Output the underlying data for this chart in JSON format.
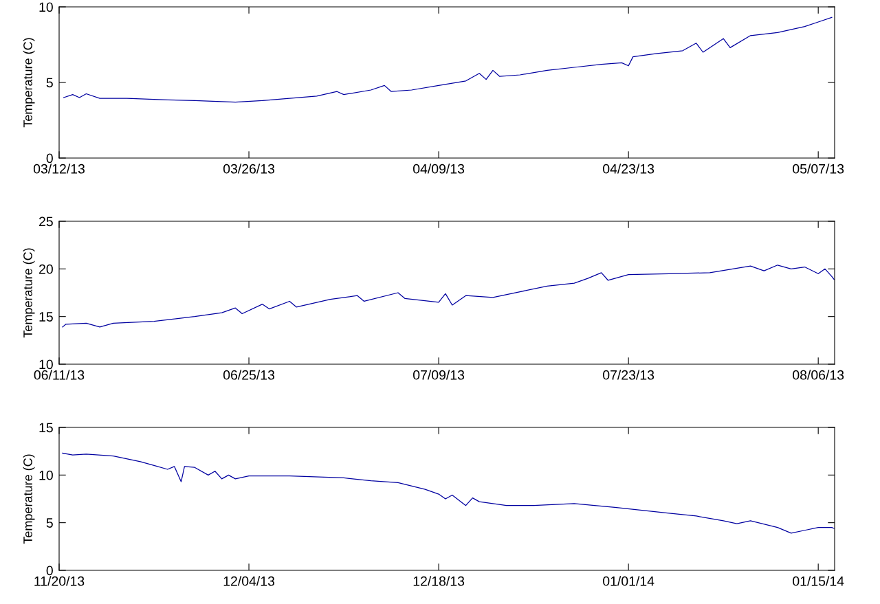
{
  "chart_data": [
    {
      "type": "line",
      "ylabel": "Temperature (C)",
      "color": "#0000a0",
      "grid": false,
      "legend": false,
      "xlim": [
        "2013-03-12",
        "2013-05-08T05:00"
      ],
      "ylim": [
        0,
        10
      ],
      "yticks": [
        0,
        5,
        10
      ],
      "xticks": [
        {
          "value": "2013-03-12",
          "label": "03/12/13"
        },
        {
          "value": "2013-03-26",
          "label": "03/26/13"
        },
        {
          "value": "2013-04-09",
          "label": "04/09/13"
        },
        {
          "value": "2013-04-23",
          "label": "04/23/13"
        },
        {
          "value": "2013-05-07",
          "label": "05/07/13"
        }
      ],
      "x": [
        "2013-03-12T08:00",
        "2013-03-13",
        "2013-03-13T12:00",
        "2013-03-14",
        "2013-03-15",
        "2013-03-17",
        "2013-03-20",
        "2013-03-22",
        "2013-03-25",
        "2013-03-27",
        "2013-03-29",
        "2013-03-31",
        "2013-04-01T12:00",
        "2013-04-02",
        "2013-04-04",
        "2013-04-05",
        "2013-04-05T12:00",
        "2013-04-07",
        "2013-04-09",
        "2013-04-11",
        "2013-04-12",
        "2013-04-12T12:00",
        "2013-04-13",
        "2013-04-13T12:00",
        "2013-04-15",
        "2013-04-17",
        "2013-04-19",
        "2013-04-21",
        "2013-04-22T12:00",
        "2013-04-23",
        "2013-04-23T08:00",
        "2013-04-25",
        "2013-04-27",
        "2013-04-28",
        "2013-04-28T12:00",
        "2013-04-30",
        "2013-04-30T12:00",
        "2013-05-02",
        "2013-05-04",
        "2013-05-06",
        "2013-05-07",
        "2013-05-08"
      ],
      "values": [
        4.0,
        4.2,
        4.0,
        4.25,
        3.95,
        3.95,
        3.85,
        3.8,
        3.7,
        3.8,
        3.95,
        4.1,
        4.4,
        4.2,
        4.5,
        4.8,
        4.4,
        4.5,
        4.8,
        5.1,
        5.6,
        5.2,
        5.8,
        5.4,
        5.5,
        5.8,
        6.0,
        6.2,
        6.3,
        6.1,
        6.7,
        6.9,
        7.1,
        7.6,
        7.0,
        7.9,
        7.3,
        8.1,
        8.3,
        8.7,
        9.0,
        9.3
      ]
    },
    {
      "type": "line",
      "ylabel": "Temperature (C)",
      "color": "#0000a0",
      "grid": false,
      "legend": false,
      "xlim": [
        "2013-06-11",
        "2013-08-07T05:00"
      ],
      "ylim": [
        10,
        25
      ],
      "yticks": [
        10,
        15,
        20,
        25
      ],
      "xticks": [
        {
          "value": "2013-06-11",
          "label": "06/11/13"
        },
        {
          "value": "2013-06-25",
          "label": "06/25/13"
        },
        {
          "value": "2013-07-09",
          "label": "07/09/13"
        },
        {
          "value": "2013-07-23",
          "label": "07/23/13"
        },
        {
          "value": "2013-08-06",
          "label": "08/06/13"
        }
      ],
      "x": [
        "2013-06-11T06:00",
        "2013-06-11T12:00",
        "2013-06-13",
        "2013-06-14",
        "2013-06-15",
        "2013-06-18",
        "2013-06-21",
        "2013-06-23",
        "2013-06-24",
        "2013-06-24T12:00",
        "2013-06-26",
        "2013-06-26T12:00",
        "2013-06-28",
        "2013-06-28T12:00",
        "2013-07-01",
        "2013-07-03",
        "2013-07-03T12:00",
        "2013-07-06",
        "2013-07-06T12:00",
        "2013-07-09",
        "2013-07-09T12:00",
        "2013-07-10",
        "2013-07-11",
        "2013-07-13",
        "2013-07-15",
        "2013-07-17",
        "2013-07-19",
        "2013-07-20",
        "2013-07-21",
        "2013-07-21T12:00",
        "2013-07-23",
        "2013-07-26",
        "2013-07-29",
        "2013-08-01",
        "2013-08-02",
        "2013-08-03",
        "2013-08-04",
        "2013-08-05",
        "2013-08-06",
        "2013-08-06T12:00",
        "2013-08-07",
        "2013-08-07T04:00"
      ],
      "values": [
        13.9,
        14.2,
        14.3,
        13.9,
        14.3,
        14.5,
        15.0,
        15.4,
        15.9,
        15.3,
        16.3,
        15.8,
        16.6,
        16.0,
        16.8,
        17.2,
        16.6,
        17.5,
        16.9,
        16.5,
        17.4,
        16.2,
        17.2,
        17.0,
        17.6,
        18.2,
        18.5,
        19.0,
        19.6,
        18.8,
        19.4,
        19.5,
        19.6,
        20.3,
        19.8,
        20.4,
        20.0,
        20.2,
        19.5,
        20.0,
        19.2,
        18.9
      ]
    },
    {
      "type": "line",
      "ylabel": "Temperature (C)",
      "color": "#0000a0",
      "grid": false,
      "legend": false,
      "xlim": [
        "2013-11-20",
        "2014-01-16T05:00"
      ],
      "ylim": [
        0,
        15
      ],
      "yticks": [
        0,
        5,
        10,
        15
      ],
      "xticks": [
        {
          "value": "2013-11-20",
          "label": "11/20/13"
        },
        {
          "value": "2013-12-04",
          "label": "12/04/13"
        },
        {
          "value": "2013-12-18",
          "label": "12/18/13"
        },
        {
          "value": "2014-01-01",
          "label": "01/01/14"
        },
        {
          "value": "2014-01-15",
          "label": "01/15/14"
        }
      ],
      "x": [
        "2013-11-20T06:00",
        "2013-11-21",
        "2013-11-22",
        "2013-11-24",
        "2013-11-26",
        "2013-11-27",
        "2013-11-28",
        "2013-11-28T12:00",
        "2013-11-29",
        "2013-11-29T06:00",
        "2013-11-30",
        "2013-12-01",
        "2013-12-01T12:00",
        "2013-12-02",
        "2013-12-02T12:00",
        "2013-12-03",
        "2013-12-04",
        "2013-12-07",
        "2013-12-11",
        "2013-12-13",
        "2013-12-15",
        "2013-12-17",
        "2013-12-18",
        "2013-12-18T12:00",
        "2013-12-19",
        "2013-12-20",
        "2013-12-20T12:00",
        "2013-12-21",
        "2013-12-23",
        "2013-12-25",
        "2013-12-28",
        "2013-12-31",
        "2014-01-02",
        "2014-01-04",
        "2014-01-06",
        "2014-01-08",
        "2014-01-09",
        "2014-01-10",
        "2014-01-12",
        "2014-01-13",
        "2014-01-14",
        "2014-01-15",
        "2014-01-16",
        "2014-01-16T04:00"
      ],
      "values": [
        12.3,
        12.1,
        12.2,
        12.0,
        11.4,
        11.0,
        10.6,
        10.9,
        9.3,
        10.9,
        10.8,
        10.0,
        10.4,
        9.6,
        10.0,
        9.6,
        9.9,
        9.9,
        9.7,
        9.4,
        9.2,
        8.5,
        8.0,
        7.5,
        7.9,
        6.8,
        7.6,
        7.2,
        6.8,
        6.8,
        7.0,
        6.6,
        6.3,
        6.0,
        5.7,
        5.2,
        4.9,
        5.2,
        4.5,
        3.9,
        4.2,
        4.5,
        4.5,
        4.4
      ]
    }
  ]
}
